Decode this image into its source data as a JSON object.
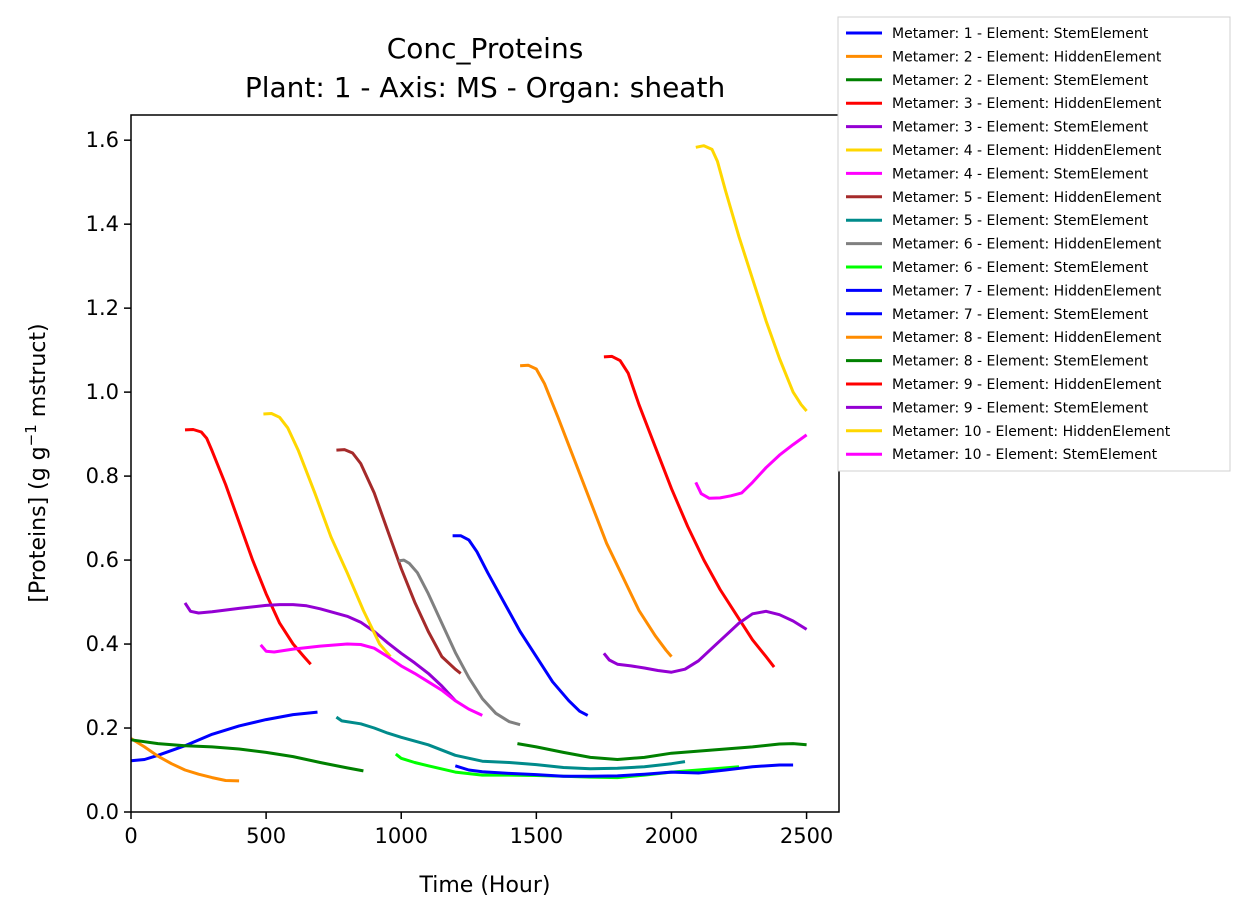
{
  "chart_data": {
    "type": "line",
    "title": "Conc_Proteins",
    "subtitle": "Plant: 1 - Axis: MS - Organ: sheath",
    "xlabel": "Time (Hour)",
    "ylabel_main": "[Proteins] (g g",
    "ylabel_sup": "−1",
    "ylabel_tail": " mstruct)",
    "xlim": [
      0,
      2620
    ],
    "ylim": [
      0,
      1.66
    ],
    "xticks": [
      0,
      500,
      1000,
      1500,
      2000,
      2500
    ],
    "xtick_labels": [
      "0",
      "500",
      "1000",
      "1500",
      "2000",
      "2500"
    ],
    "yticks": [
      0.0,
      0.2,
      0.4,
      0.6,
      0.8,
      1.0,
      1.2,
      1.4,
      1.6
    ],
    "ytick_labels": [
      "0.0",
      "0.2",
      "0.4",
      "0.6",
      "0.8",
      "1.0",
      "1.2",
      "1.4",
      "1.6"
    ],
    "grid": false,
    "legend_position": "outside-top-right",
    "series": [
      {
        "name": "Metamer: 1 - Element: StemElement",
        "color": "#0000ff",
        "x": [
          0,
          50,
          100,
          200,
          300,
          400,
          500,
          600,
          650,
          690
        ],
        "y": [
          0.122,
          0.125,
          0.135,
          0.158,
          0.185,
          0.205,
          0.22,
          0.232,
          0.235,
          0.238
        ]
      },
      {
        "name": "Metamer: 2 - Element: HiddenElement",
        "color": "#ff8c00",
        "x": [
          0,
          50,
          100,
          150,
          200,
          250,
          300,
          350,
          400
        ],
        "y": [
          0.175,
          0.155,
          0.133,
          0.115,
          0.1,
          0.09,
          0.082,
          0.075,
          0.074
        ]
      },
      {
        "name": "Metamer: 2 - Element: StemElement",
        "color": "#008000",
        "x": [
          0,
          100,
          200,
          300,
          400,
          500,
          600,
          700,
          800,
          860
        ],
        "y": [
          0.172,
          0.163,
          0.158,
          0.155,
          0.15,
          0.142,
          0.132,
          0.118,
          0.105,
          0.098
        ]
      },
      {
        "name": "Metamer: 3 - Element: HiddenElement",
        "color": "#ff0000",
        "x": [
          200,
          230,
          260,
          280,
          300,
          350,
          400,
          450,
          500,
          550,
          600,
          640,
          665
        ],
        "y": [
          0.91,
          0.911,
          0.905,
          0.89,
          0.86,
          0.78,
          0.69,
          0.6,
          0.52,
          0.45,
          0.4,
          0.37,
          0.352
        ]
      },
      {
        "name": "Metamer: 3 - Element: StemElement",
        "color": "#9400d3",
        "x": [
          200,
          220,
          250,
          300,
          400,
          500,
          550,
          600,
          650,
          700,
          750,
          800,
          850,
          900,
          950,
          1000,
          1050,
          1100,
          1150,
          1200
        ],
        "y": [
          0.498,
          0.478,
          0.474,
          0.477,
          0.485,
          0.492,
          0.494,
          0.494,
          0.491,
          0.484,
          0.475,
          0.466,
          0.452,
          0.43,
          0.403,
          0.378,
          0.355,
          0.33,
          0.3,
          0.265
        ]
      },
      {
        "name": "Metamer: 4 - Element: HiddenElement",
        "color": "#ffd700",
        "x": [
          490,
          520,
          550,
          580,
          620,
          680,
          740,
          800,
          860,
          920,
          960
        ],
        "y": [
          0.948,
          0.949,
          0.94,
          0.915,
          0.86,
          0.76,
          0.655,
          0.57,
          0.48,
          0.4,
          0.37
        ]
      },
      {
        "name": "Metamer: 4 - Element: StemElement",
        "color": "#ff00ff",
        "x": [
          480,
          500,
          530,
          600,
          700,
          800,
          850,
          900,
          950,
          1000,
          1050,
          1100,
          1150,
          1200,
          1250,
          1300
        ],
        "y": [
          0.398,
          0.383,
          0.381,
          0.388,
          0.395,
          0.4,
          0.399,
          0.39,
          0.37,
          0.348,
          0.33,
          0.31,
          0.29,
          0.265,
          0.245,
          0.23
        ]
      },
      {
        "name": "Metamer: 5 - Element: HiddenElement",
        "color": "#a52a2a",
        "x": [
          760,
          790,
          820,
          850,
          900,
          950,
          1000,
          1050,
          1100,
          1150,
          1200,
          1220
        ],
        "y": [
          0.862,
          0.863,
          0.855,
          0.83,
          0.76,
          0.67,
          0.58,
          0.5,
          0.43,
          0.37,
          0.34,
          0.33
        ]
      },
      {
        "name": "Metamer: 5 - Element: StemElement",
        "color": "#008b8b",
        "x": [
          760,
          780,
          850,
          900,
          950,
          1000,
          1100,
          1200,
          1300,
          1400,
          1500,
          1600,
          1700,
          1800,
          1900,
          2000,
          2050
        ],
        "y": [
          0.226,
          0.217,
          0.21,
          0.2,
          0.188,
          0.178,
          0.16,
          0.135,
          0.121,
          0.118,
          0.113,
          0.106,
          0.103,
          0.104,
          0.108,
          0.115,
          0.12
        ]
      },
      {
        "name": "Metamer: 6 - Element: HiddenElement",
        "color": "#808080",
        "x": [
          990,
          1010,
          1030,
          1060,
          1100,
          1150,
          1200,
          1250,
          1300,
          1350,
          1400,
          1440
        ],
        "y": [
          0.598,
          0.6,
          0.592,
          0.57,
          0.52,
          0.45,
          0.38,
          0.32,
          0.27,
          0.235,
          0.215,
          0.208
        ]
      },
      {
        "name": "Metamer: 6 - Element: StemElement",
        "color": "#00ff00",
        "x": [
          980,
          1000,
          1050,
          1100,
          1200,
          1300,
          1400,
          1500,
          1600,
          1700,
          1800,
          1900,
          2000,
          2100,
          2200,
          2250
        ],
        "y": [
          0.138,
          0.128,
          0.118,
          0.11,
          0.095,
          0.088,
          0.088,
          0.087,
          0.085,
          0.083,
          0.082,
          0.088,
          0.095,
          0.1,
          0.105,
          0.108
        ]
      },
      {
        "name": "Metamer: 7 - Element: HiddenElement",
        "color": "#0000ff",
        "x": [
          1190,
          1220,
          1250,
          1280,
          1320,
          1380,
          1440,
          1500,
          1560,
          1620,
          1660,
          1690
        ],
        "y": [
          0.658,
          0.658,
          0.648,
          0.62,
          0.57,
          0.5,
          0.43,
          0.37,
          0.31,
          0.265,
          0.24,
          0.23
        ]
      },
      {
        "name": "Metamer: 7 - Element: StemElement",
        "color": "#0000ff",
        "x": [
          1200,
          1250,
          1300,
          1400,
          1500,
          1600,
          1700,
          1800,
          1900,
          2000,
          2100,
          2200,
          2300,
          2400,
          2450
        ],
        "y": [
          0.11,
          0.1,
          0.096,
          0.092,
          0.089,
          0.085,
          0.085,
          0.086,
          0.09,
          0.095,
          0.093,
          0.1,
          0.108,
          0.112,
          0.112
        ]
      },
      {
        "name": "Metamer: 8 - Element: HiddenElement",
        "color": "#ff8c00",
        "x": [
          1440,
          1470,
          1500,
          1530,
          1580,
          1640,
          1700,
          1760,
          1820,
          1880,
          1940,
          1980,
          2000
        ],
        "y": [
          1.063,
          1.064,
          1.055,
          1.02,
          0.94,
          0.84,
          0.74,
          0.64,
          0.56,
          0.48,
          0.42,
          0.385,
          0.37
        ]
      },
      {
        "name": "Metamer: 8 - Element: StemElement",
        "color": "#008000",
        "x": [
          1430,
          1500,
          1600,
          1700,
          1800,
          1900,
          2000,
          2100,
          2200,
          2300,
          2400,
          2450,
          2500
        ],
        "y": [
          0.163,
          0.155,
          0.142,
          0.13,
          0.125,
          0.13,
          0.14,
          0.145,
          0.15,
          0.155,
          0.162,
          0.163,
          0.16
        ]
      },
      {
        "name": "Metamer: 9 - Element: HiddenElement",
        "color": "#ff0000",
        "x": [
          1750,
          1780,
          1810,
          1840,
          1880,
          1940,
          2000,
          2060,
          2120,
          2180,
          2240,
          2300,
          2350,
          2380
        ],
        "y": [
          1.084,
          1.085,
          1.075,
          1.045,
          0.97,
          0.87,
          0.77,
          0.68,
          0.6,
          0.53,
          0.47,
          0.41,
          0.37,
          0.345
        ]
      },
      {
        "name": "Metamer: 9 - Element: StemElement",
        "color": "#9400d3",
        "x": [
          1750,
          1770,
          1800,
          1850,
          1900,
          1950,
          2000,
          2050,
          2100,
          2150,
          2200,
          2250,
          2300,
          2350,
          2400,
          2450,
          2500
        ],
        "y": [
          0.378,
          0.362,
          0.352,
          0.348,
          0.343,
          0.337,
          0.333,
          0.34,
          0.36,
          0.39,
          0.42,
          0.45,
          0.472,
          0.478,
          0.47,
          0.455,
          0.435
        ]
      },
      {
        "name": "Metamer: 10 - Element: HiddenElement",
        "color": "#ffd700",
        "x": [
          2090,
          2120,
          2150,
          2170,
          2200,
          2250,
          2300,
          2350,
          2400,
          2450,
          2480,
          2500
        ],
        "y": [
          1.583,
          1.587,
          1.578,
          1.55,
          1.48,
          1.37,
          1.27,
          1.17,
          1.08,
          1.0,
          0.97,
          0.955
        ]
      },
      {
        "name": "Metamer: 10 - Element: StemElement",
        "color": "#ff00ff",
        "x": [
          2090,
          2110,
          2140,
          2180,
          2220,
          2260,
          2300,
          2350,
          2400,
          2450,
          2500
        ],
        "y": [
          0.785,
          0.758,
          0.747,
          0.748,
          0.753,
          0.76,
          0.785,
          0.82,
          0.85,
          0.875,
          0.898
        ]
      }
    ]
  }
}
